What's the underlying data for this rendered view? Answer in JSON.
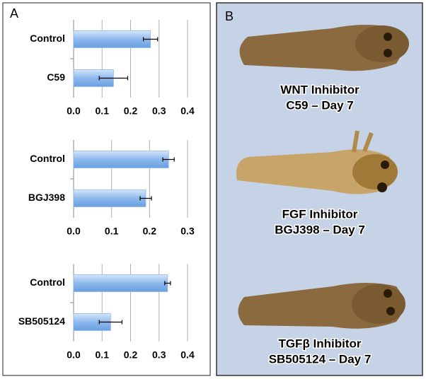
{
  "panel_a_label": "A",
  "panel_b": {
    "label": "B",
    "captions": [
      [
        "WNT Inhibitor",
        "C59 – Day 7"
      ],
      [
        "FGF Inhibitor",
        "BGJ398 – Day 7"
      ],
      [
        "TGFβ Inhibitor",
        "SB505124 – Day 7"
      ]
    ]
  },
  "chart_data": [
    {
      "type": "hbar",
      "categories": [
        "Control",
        "C59"
      ],
      "values": [
        0.27,
        0.14
      ],
      "errors": [
        0.025,
        0.05
      ],
      "color": "#8cb8ec",
      "xlim": [
        0,
        0.4
      ],
      "xticks": [
        {
          "value": 0,
          "label": "0.0"
        },
        0.1,
        0.2,
        0.3,
        0.4
      ],
      "grid": true
    },
    {
      "type": "hbar",
      "categories": [
        "Control",
        "BGJ398"
      ],
      "values": [
        0.25,
        0.19
      ],
      "errors": [
        0.015,
        0.015
      ],
      "color": "#8cb8ec",
      "xlim": [
        0,
        0.3
      ],
      "xticks": [
        {
          "value": 0,
          "label": "0.0"
        },
        0.1,
        0.2,
        0.3
      ],
      "grid": true
    },
    {
      "type": "hbar",
      "categories": [
        "Control",
        "SB505124"
      ],
      "values": [
        0.33,
        0.13
      ],
      "errors": [
        0.01,
        0.04
      ],
      "color": "#8cb8ec",
      "xlim": [
        0,
        0.4
      ],
      "xticks": [
        {
          "value": 0,
          "label": "0.0"
        },
        0.1,
        0.2,
        0.3,
        0.4
      ],
      "grid": true
    }
  ]
}
